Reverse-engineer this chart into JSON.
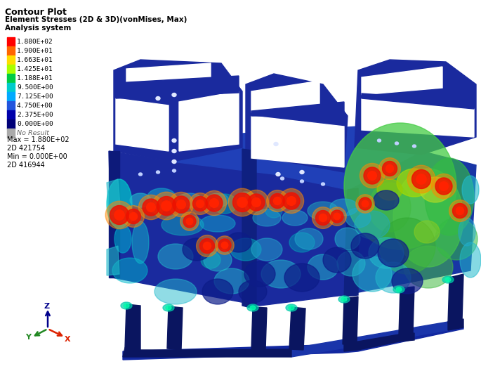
{
  "title_lines": [
    "Contour Plot",
    "Element Stresses (2D & 3D)(vonMises, Max)",
    "Analysis system"
  ],
  "legend_labels": [
    "1.880E+02",
    "1.900E+01",
    "1.663E+01",
    "1.425E+01",
    "1.188E+01",
    "9.500E+00",
    "7.125E+00",
    "4.750E+00",
    "2.375E+00",
    "0.000E+00"
  ],
  "legend_colors": [
    "#ff0000",
    "#ff6600",
    "#ffdd00",
    "#aaff00",
    "#00cc44",
    "#00cccc",
    "#00aaff",
    "#2255dd",
    "#0000aa",
    "#000077"
  ],
  "no_result_color": "#aaaaaa",
  "max_label": "Max = 1.880E+02",
  "max_id": "2D 421754",
  "min_label": "Min = 0.000E+00",
  "min_id": "2D 416944",
  "bg_color": "#ffffff",
  "text_color": "#000000",
  "model_dark_blue": "#1a2a9e",
  "model_navy": "#0d1a7a",
  "model_mid_blue": "#2244bb",
  "frame_color": "#0a1560",
  "axis_z_color": "#00008b",
  "axis_y_color": "#228822",
  "axis_x_color": "#dd2200"
}
